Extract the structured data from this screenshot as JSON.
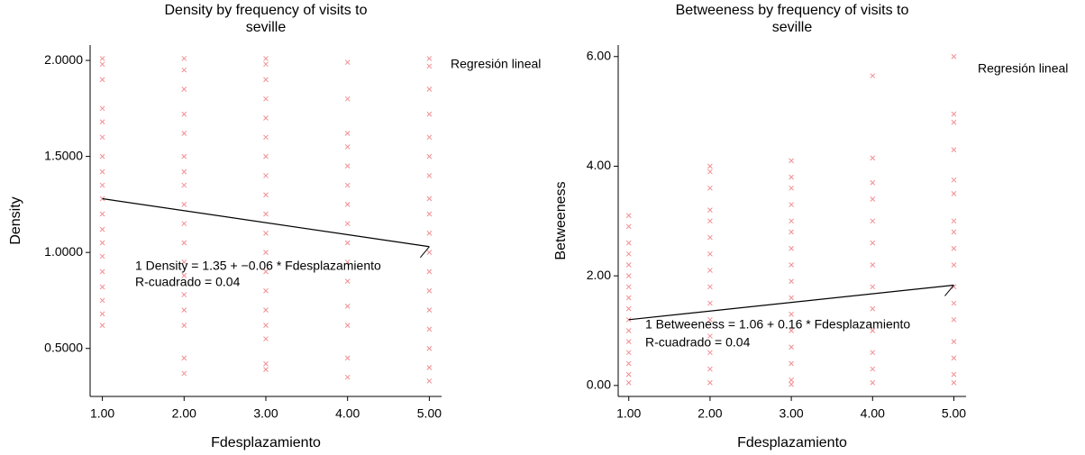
{
  "chart_data": [
    {
      "type": "scatter",
      "title": [
        "Density by frequency of visits to",
        "seville"
      ],
      "x_label": "Fdesplazamiento",
      "y_label": "Density",
      "legend": "Regresión lineal",
      "annotation": [
        "1 Density = 1.35 + −0.06 * Fdesplazamiento",
        "R-cuadrado = 0.04"
      ],
      "color": "#e8434a",
      "line_color": "#000000",
      "xlim": [
        0.85,
        5.15
      ],
      "ylim": [
        0.25,
        2.08
      ],
      "xticks": [
        {
          "value": 1,
          "label": "1.00"
        },
        {
          "value": 2,
          "label": "2.00"
        },
        {
          "value": 3,
          "label": "3.00"
        },
        {
          "value": 4,
          "label": "4.00"
        },
        {
          "value": 5,
          "label": "5.00"
        }
      ],
      "yticks": [
        {
          "value": 0.5,
          "label": "0.5000"
        },
        {
          "value": 1,
          "label": "1.0000"
        },
        {
          "value": 1.5,
          "label": "1.5000"
        },
        {
          "value": 2,
          "label": "2.0000"
        }
      ],
      "x": [
        1,
        1,
        1,
        1,
        1,
        1,
        1,
        1,
        1,
        1,
        1,
        1,
        1,
        1,
        1,
        1,
        1,
        1,
        1,
        2,
        2,
        2,
        2,
        2,
        2,
        2,
        2,
        2,
        2,
        2,
        2,
        2,
        2,
        2,
        2,
        2,
        2,
        3,
        3,
        3,
        3,
        3,
        3,
        3,
        3,
        3,
        3,
        3,
        3,
        3,
        3,
        3,
        3,
        3,
        3,
        3,
        4,
        4,
        4,
        4,
        4,
        4,
        4,
        4,
        4,
        4,
        4,
        4,
        4,
        4,
        4,
        5,
        5,
        5,
        5,
        5,
        5,
        5,
        5,
        5,
        5,
        5,
        5,
        5,
        5,
        5,
        5,
        5,
        5
      ],
      "y": [
        2.01,
        1.98,
        1.9,
        1.75,
        1.68,
        1.6,
        1.5,
        1.42,
        1.35,
        1.28,
        1.2,
        1.12,
        1.05,
        0.98,
        0.9,
        0.82,
        0.75,
        0.68,
        0.62,
        2.01,
        1.95,
        1.85,
        1.72,
        1.62,
        1.5,
        1.42,
        1.35,
        1.25,
        1.15,
        1.05,
        0.95,
        0.88,
        0.78,
        0.7,
        0.62,
        0.45,
        0.37,
        2.01,
        1.98,
        1.9,
        1.8,
        1.7,
        1.6,
        1.5,
        1.4,
        1.3,
        1.2,
        1.1,
        1.0,
        0.9,
        0.8,
        0.7,
        0.62,
        0.55,
        0.42,
        0.39,
        1.99,
        1.8,
        1.62,
        1.55,
        1.45,
        1.35,
        1.25,
        1.15,
        1.05,
        0.95,
        0.85,
        0.72,
        0.62,
        0.45,
        0.35,
        2.01,
        1.97,
        1.85,
        1.72,
        1.6,
        1.5,
        1.4,
        1.28,
        1.2,
        1.1,
        1.0,
        0.9,
        0.8,
        0.7,
        0.6,
        0.5,
        0.4,
        0.33
      ],
      "fit": {
        "x": [
          1,
          5
        ],
        "y": [
          1.28,
          1.03
        ]
      }
    },
    {
      "type": "scatter",
      "title": [
        "Betweeness by frequency of visits to",
        "seville"
      ],
      "x_label": "Fdesplazamiento",
      "y_label": "Betweeness",
      "legend": "Regresión lineal",
      "annotation": [
        "1 Betweeness = 1.06 + 0.16 * Fdesplazamiento",
        "R-cuadrado = 0.04"
      ],
      "color": "#e8434a",
      "line_color": "#000000",
      "xlim": [
        0.87,
        5.15
      ],
      "ylim": [
        -0.2,
        6.21
      ],
      "xticks": [
        {
          "value": 1,
          "label": "1.00"
        },
        {
          "value": 2,
          "label": "2.00"
        },
        {
          "value": 3,
          "label": "3.00"
        },
        {
          "value": 4,
          "label": "4.00"
        },
        {
          "value": 5,
          "label": "5.00"
        }
      ],
      "yticks": [
        {
          "value": 0,
          "label": "0.00"
        },
        {
          "value": 2,
          "label": "2.00"
        },
        {
          "value": 4,
          "label": "4.00"
        },
        {
          "value": 6,
          "label": "6.00"
        }
      ],
      "x": [
        1,
        1,
        1,
        1,
        1,
        1,
        1,
        1,
        1,
        1,
        1,
        1,
        1,
        1,
        1,
        1,
        2,
        2,
        2,
        2,
        2,
        2,
        2,
        2,
        2,
        2,
        2,
        2,
        2,
        2,
        2,
        3,
        3,
        3,
        3,
        3,
        3,
        3,
        3,
        3,
        3,
        3,
        3,
        3,
        3,
        3,
        3,
        4,
        4,
        4,
        4,
        4,
        4,
        4,
        4,
        4,
        4,
        4,
        4,
        4,
        5,
        5,
        5,
        5,
        5,
        5,
        5,
        5,
        5,
        5,
        5,
        5,
        5,
        5,
        5,
        5,
        5
      ],
      "y": [
        3.1,
        2.9,
        2.6,
        2.4,
        2.2,
        2.0,
        1.8,
        1.6,
        1.4,
        1.2,
        1.0,
        0.8,
        0.6,
        0.4,
        0.2,
        0.05,
        4.0,
        3.9,
        3.6,
        3.2,
        3.0,
        2.7,
        2.4,
        2.1,
        1.8,
        1.5,
        1.2,
        0.9,
        0.6,
        0.3,
        0.05,
        4.1,
        3.8,
        3.6,
        3.3,
        3.0,
        2.8,
        2.5,
        2.2,
        1.9,
        1.6,
        1.3,
        1.0,
        0.7,
        0.4,
        0.1,
        0.02,
        5.65,
        4.15,
        3.7,
        3.4,
        3.0,
        2.6,
        2.2,
        1.8,
        1.4,
        1.0,
        0.6,
        0.3,
        0.05,
        6.0,
        4.95,
        4.8,
        4.3,
        3.75,
        3.5,
        3.0,
        2.8,
        2.5,
        2.2,
        1.8,
        1.5,
        1.2,
        0.8,
        0.5,
        0.2,
        0.05
      ],
      "fit": {
        "x": [
          1,
          5
        ],
        "y": [
          1.2,
          1.83
        ]
      }
    }
  ]
}
